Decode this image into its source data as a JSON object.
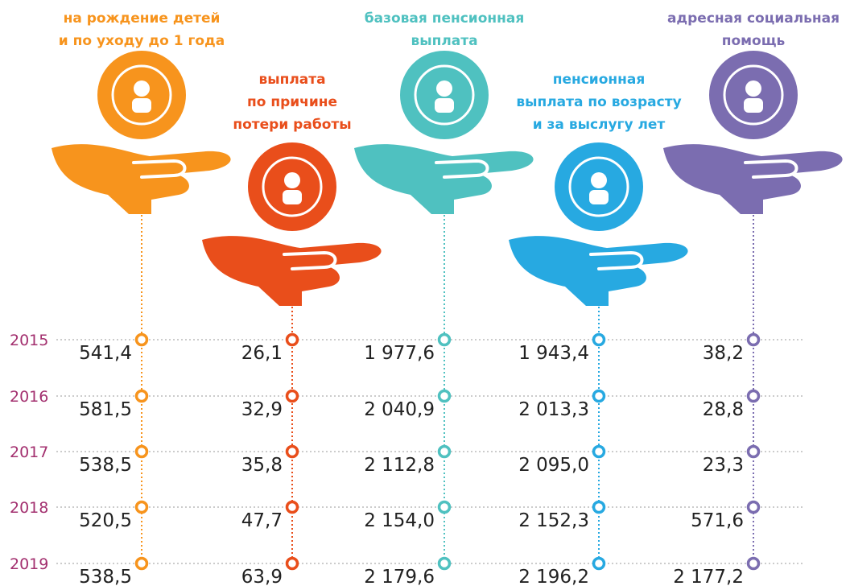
{
  "years": [
    "2015",
    "2016",
    "2017",
    "2018",
    "2019"
  ],
  "columns": [
    {
      "title": [
        "на рождение детей",
        "и по уходу до 1 года"
      ],
      "color": "#f7941d",
      "values": [
        "541,4",
        "581,5",
        "538,5",
        "520,5",
        "538,5"
      ]
    },
    {
      "title": [
        "выплата",
        "по причине",
        "потери работы"
      ],
      "color": "#e94e1b",
      "values": [
        "26,1",
        "32,9",
        "35,8",
        "47,7",
        "63,9"
      ]
    },
    {
      "title": [
        "базовая пенсионная",
        "выплата"
      ],
      "color": "#4fc1c0",
      "values": [
        "1 977,6",
        "2 040,9",
        "2 112,8",
        "2 154,0",
        "2 179,6"
      ]
    },
    {
      "title": [
        "пенсионная",
        "выплата по возрасту",
        "и за выслугу лет"
      ],
      "color": "#27a9e1",
      "values": [
        "1 943,4",
        "2 013,3",
        "2 095,0",
        "2 152,3",
        "2 196,2"
      ]
    },
    {
      "title": [
        "адресная социальная",
        "помощь"
      ],
      "color": "#7b6db0",
      "values": [
        "38,2",
        "28,8",
        "23,3",
        "571,6",
        "2 177,2"
      ]
    }
  ]
}
